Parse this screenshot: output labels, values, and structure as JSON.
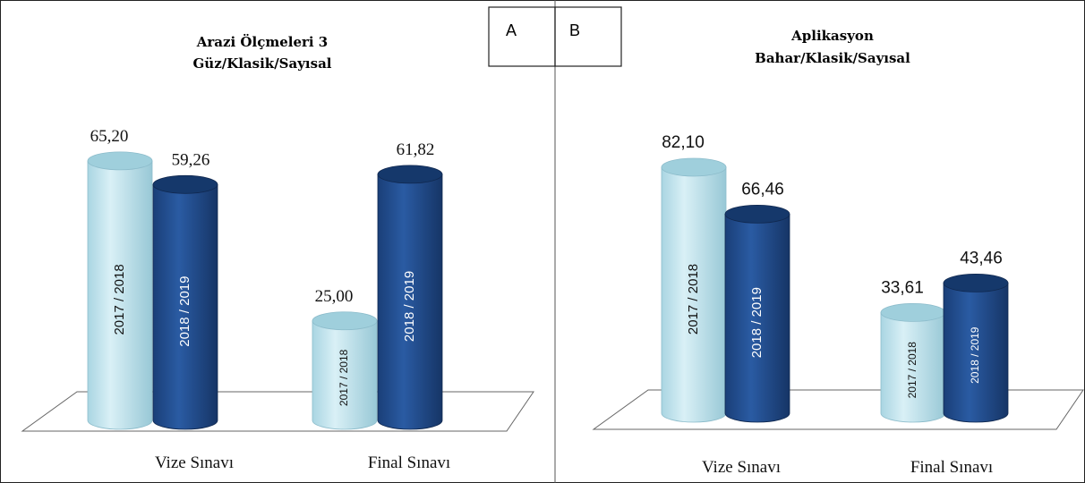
{
  "chart_data": [
    {
      "type": "bar",
      "panel_label": "A",
      "title": [
        "Arazi Ölçmeleri 3",
        "Güz/Klasik/Sayısal"
      ],
      "categories": [
        "Vize Sınavı",
        "Final  Sınavı"
      ],
      "series": [
        {
          "name": "2017 / 2018",
          "values": [
            65.2,
            25.0
          ],
          "labels": [
            "65,20",
            "25,00"
          ]
        },
        {
          "name": "2018 / 2019",
          "values": [
            59.26,
            61.82
          ],
          "labels": [
            "59,26",
            "61,82"
          ]
        }
      ]
    },
    {
      "type": "bar",
      "panel_label": "B",
      "title": [
        "Aplikasyon",
        "Bahar/Klasik/Sayısal"
      ],
      "categories": [
        "Vize Sınavı",
        "Final  Sınavı"
      ],
      "series": [
        {
          "name": "2017  / 2018",
          "values": [
            82.1,
            33.61
          ],
          "labels": [
            "82,10",
            "33,61"
          ]
        },
        {
          "name": "2018 / 2019",
          "values": [
            66.46,
            43.46
          ],
          "labels": [
            "66,46",
            "43,46"
          ]
        }
      ]
    }
  ],
  "colors": {
    "series1_body": "#c5e6ef",
    "series1_top": "#9fcfdc",
    "series2_body": "#1f4c8e",
    "series2_top": "#15386b"
  }
}
